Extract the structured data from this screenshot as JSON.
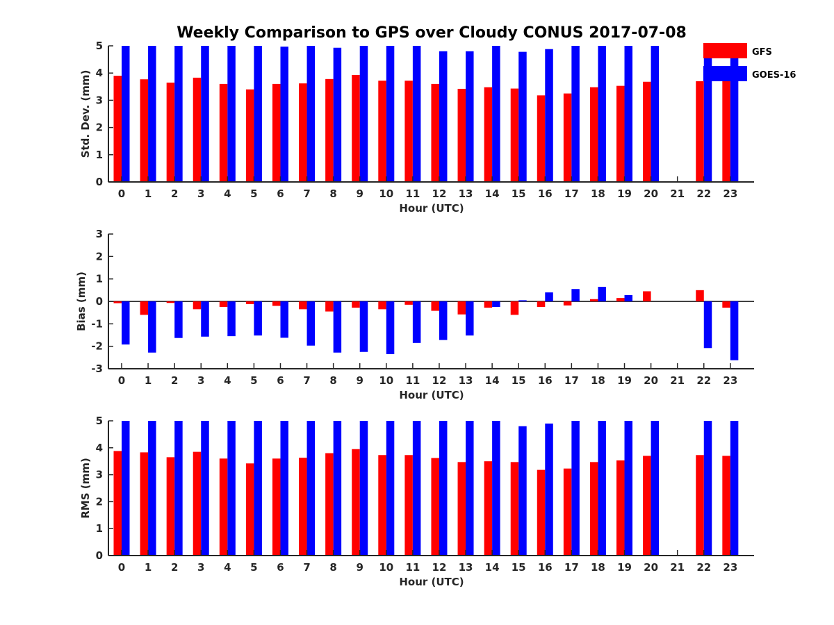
{
  "title": "Weekly Comparison to GPS over Cloudy CONUS 2017-07-08",
  "legend": [
    {
      "name": "GFS",
      "color": "#ff0000"
    },
    {
      "name": "GOES-16",
      "color": "#0000ff"
    }
  ],
  "chart_data": [
    {
      "type": "bar",
      "ylabel": "Std. Dev. (mm)",
      "xlabel": "Hour (UTC)",
      "ylim": [
        0,
        5
      ],
      "yticks": [
        0,
        1,
        2,
        3,
        4,
        5
      ],
      "categories": [
        "0",
        "1",
        "2",
        "3",
        "4",
        "5",
        "6",
        "7",
        "8",
        "9",
        "10",
        "11",
        "12",
        "13",
        "14",
        "15",
        "16",
        "17",
        "18",
        "19",
        "20",
        "21",
        "22",
        "23"
      ],
      "series": [
        {
          "name": "GFS",
          "color": "#ff0000",
          "values": [
            3.9,
            3.77,
            3.65,
            3.83,
            3.6,
            3.4,
            3.6,
            3.62,
            3.78,
            3.93,
            3.72,
            3.72,
            3.6,
            3.42,
            3.48,
            3.43,
            3.18,
            3.25,
            3.48,
            3.53,
            3.68,
            null,
            3.7,
            3.7
          ]
        },
        {
          "name": "GOES-16",
          "color": "#0000ff",
          "values": [
            5.0,
            5.0,
            5.0,
            5.0,
            5.0,
            5.0,
            4.97,
            5.0,
            4.93,
            5.0,
            5.0,
            5.0,
            4.8,
            4.8,
            5.0,
            4.78,
            4.88,
            5.0,
            5.0,
            5.0,
            5.0,
            null,
            5.0,
            5.0
          ]
        }
      ]
    },
    {
      "type": "bar",
      "ylabel": "Bias (mm)",
      "xlabel": "Hour (UTC)",
      "ylim": [
        -3,
        3
      ],
      "yticks": [
        -3,
        -2,
        -1,
        0,
        1,
        2,
        3
      ],
      "categories": [
        "0",
        "1",
        "2",
        "3",
        "4",
        "5",
        "6",
        "7",
        "8",
        "9",
        "10",
        "11",
        "12",
        "13",
        "14",
        "15",
        "16",
        "17",
        "18",
        "19",
        "20",
        "21",
        "22",
        "23"
      ],
      "series": [
        {
          "name": "GFS",
          "color": "#ff0000",
          "values": [
            -0.08,
            -0.6,
            -0.07,
            -0.35,
            -0.25,
            -0.12,
            -0.2,
            -0.35,
            -0.45,
            -0.28,
            -0.35,
            -0.15,
            -0.42,
            -0.58,
            -0.28,
            -0.6,
            -0.25,
            -0.18,
            0.1,
            0.15,
            0.45,
            null,
            0.5,
            -0.28
          ]
        },
        {
          "name": "GOES-16",
          "color": "#0000ff",
          "values": [
            -1.92,
            -2.28,
            -1.63,
            -1.57,
            -1.55,
            -1.52,
            -1.62,
            -1.97,
            -2.28,
            -2.25,
            -2.35,
            -1.85,
            -1.72,
            -1.52,
            -0.25,
            0.05,
            0.4,
            0.55,
            0.65,
            0.28,
            null,
            null,
            -2.08,
            -2.62
          ]
        }
      ]
    },
    {
      "type": "bar",
      "ylabel": "RMS (mm)",
      "xlabel": "Hour (UTC)",
      "ylim": [
        0,
        5
      ],
      "yticks": [
        0,
        1,
        2,
        3,
        4,
        5
      ],
      "categories": [
        "0",
        "1",
        "2",
        "3",
        "4",
        "5",
        "6",
        "7",
        "8",
        "9",
        "10",
        "11",
        "12",
        "13",
        "14",
        "15",
        "16",
        "17",
        "18",
        "19",
        "20",
        "21",
        "22",
        "23"
      ],
      "series": [
        {
          "name": "GFS",
          "color": "#ff0000",
          "values": [
            3.88,
            3.83,
            3.65,
            3.85,
            3.6,
            3.42,
            3.6,
            3.63,
            3.8,
            3.95,
            3.73,
            3.73,
            3.62,
            3.47,
            3.5,
            3.47,
            3.18,
            3.23,
            3.47,
            3.53,
            3.7,
            null,
            3.73,
            3.7
          ]
        },
        {
          "name": "GOES-16",
          "color": "#0000ff",
          "values": [
            5.0,
            5.0,
            5.0,
            5.0,
            5.0,
            5.0,
            5.0,
            5.0,
            5.0,
            5.0,
            5.0,
            5.0,
            5.0,
            5.0,
            5.0,
            4.8,
            4.9,
            5.0,
            5.0,
            5.0,
            5.0,
            null,
            5.0,
            5.0
          ]
        }
      ]
    }
  ]
}
